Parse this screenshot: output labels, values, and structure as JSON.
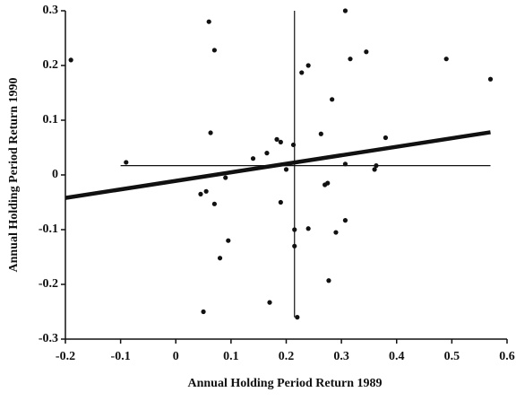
{
  "chart_data": {
    "type": "scatter",
    "xlabel": "Annual Holding Period Return 1989",
    "ylabel": "Annual Holding Period Return 1990",
    "xlim": [
      -0.2,
      0.6
    ],
    "ylim": [
      -0.3,
      0.3
    ],
    "xticks": [
      -0.2,
      -0.1,
      0,
      0.1,
      0.2,
      0.3,
      0.4,
      0.5,
      0.6
    ],
    "yticks": [
      -0.3,
      -0.2,
      -0.1,
      0,
      0.1,
      0.2,
      0.3
    ],
    "color": "#111111",
    "series": [
      {
        "x": [
          -0.19,
          -0.09,
          0.06,
          0.07,
          0.063,
          0.045,
          0.055,
          0.07,
          0.09,
          0.095,
          0.08,
          0.05,
          0.14,
          0.165,
          0.183,
          0.19,
          0.19,
          0.2,
          0.213,
          0.215,
          0.215,
          0.22,
          0.17,
          0.228,
          0.24,
          0.24,
          0.263,
          0.27,
          0.275,
          0.283,
          0.277,
          0.29,
          0.307,
          0.307,
          0.307,
          0.316,
          0.345,
          0.36,
          0.363,
          0.38,
          0.49,
          0.57
        ],
        "y": [
          0.21,
          0.023,
          0.28,
          0.228,
          0.077,
          -0.035,
          -0.03,
          -0.053,
          -0.005,
          -0.12,
          -0.152,
          -0.25,
          0.03,
          0.04,
          0.065,
          0.06,
          -0.05,
          0.01,
          0.055,
          -0.1,
          -0.13,
          -0.26,
          -0.233,
          0.187,
          0.2,
          -0.098,
          0.075,
          -0.018,
          -0.015,
          0.138,
          -0.193,
          -0.105,
          0.02,
          -0.083,
          0.3,
          0.212,
          0.225,
          0.01,
          0.017,
          0.068,
          0.212,
          0.175
        ]
      }
    ],
    "reference_lines": [
      {
        "x": [
          0.215,
          0.215
        ],
        "y": [
          -0.26,
          0.3
        ]
      },
      {
        "x": [
          -0.1,
          0.57
        ],
        "y": [
          0.017,
          0.017
        ]
      }
    ],
    "fit_line": {
      "x": [
        -0.2,
        0.57
      ],
      "y": [
        -0.042,
        0.078
      ]
    }
  }
}
